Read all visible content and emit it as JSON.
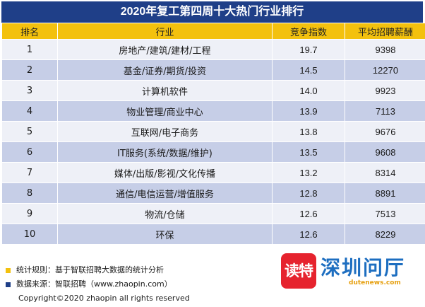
{
  "title": "2020年复工第四周十大热门行业排行",
  "chart_data": {
    "type": "table",
    "columns": [
      "排名",
      "行业",
      "竞争指数",
      "平均招聘薪酬"
    ],
    "rows": [
      [
        "1",
        "房地产/建筑/建材/工程",
        "19.7",
        "9398"
      ],
      [
        "2",
        "基金/证券/期货/投资",
        "14.5",
        "12270"
      ],
      [
        "3",
        "计算机软件",
        "14.0",
        "9923"
      ],
      [
        "4",
        "物业管理/商业中心",
        "13.9",
        "7113"
      ],
      [
        "5",
        "互联网/电子商务",
        "13.8",
        "9676"
      ],
      [
        "6",
        "IT服务(系统/数据/维护)",
        "13.5",
        "9608"
      ],
      [
        "7",
        "媒体/出版/影视/文化传播",
        "13.2",
        "8314"
      ],
      [
        "8",
        "通信/电信运营/增值服务",
        "12.8",
        "8891"
      ],
      [
        "9",
        "物流/仓储",
        "12.6",
        "7513"
      ],
      [
        "10",
        "环保",
        "12.6",
        "8229"
      ]
    ]
  },
  "notes": [
    {
      "text": "统计规则：基于智联招聘大数据的统计分析",
      "color": "#f3c10e"
    },
    {
      "text": "数据来源：智联招聘（www.zhaopin.com）",
      "color": "#1f3f88"
    }
  ],
  "copyright": "Copyright©2020 zhaopin all rights reserved",
  "watermark": {
    "badge": "读特",
    "text": "深圳问厅",
    "sub": "dutenews.com"
  },
  "colors": {
    "header": "#1f3f88",
    "column_header": "#f3c10e",
    "row_light": "#eef0f7",
    "row_dark": "#c6cee7"
  }
}
